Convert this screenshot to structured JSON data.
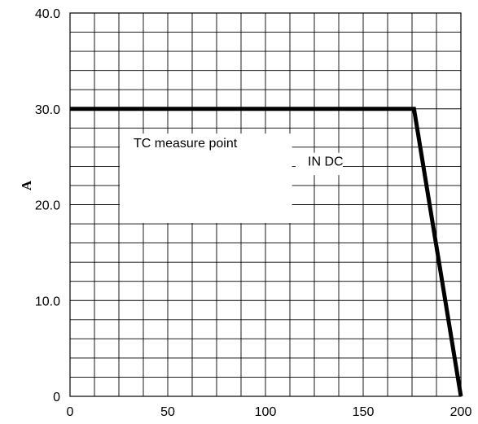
{
  "chart_data": {
    "type": "line",
    "title": "",
    "xlabel": "",
    "ylabel": "A",
    "xlim": [
      0,
      200
    ],
    "ylim": [
      0,
      40
    ],
    "grid": true,
    "x_ticks": [
      0,
      50,
      100,
      150,
      200
    ],
    "x_tick_labels": [
      "0",
      "50",
      "100",
      "150",
      "200"
    ],
    "y_ticks": [
      0,
      10,
      20,
      30,
      40
    ],
    "y_tick_labels": [
      "0",
      "10.0",
      "20.0",
      "30.0",
      "40.0"
    ],
    "series": [
      {
        "x": [
          0,
          176,
          200
        ],
        "y": [
          30,
          30,
          0
        ],
        "color": "#000000"
      }
    ],
    "annotations": [
      {
        "text": "TC measure point",
        "x": 25,
        "y": 27.5,
        "box_to": [
          114,
          18
        ]
      },
      {
        "text": "IN DC",
        "x": 115,
        "y": 25.5
      }
    ]
  }
}
